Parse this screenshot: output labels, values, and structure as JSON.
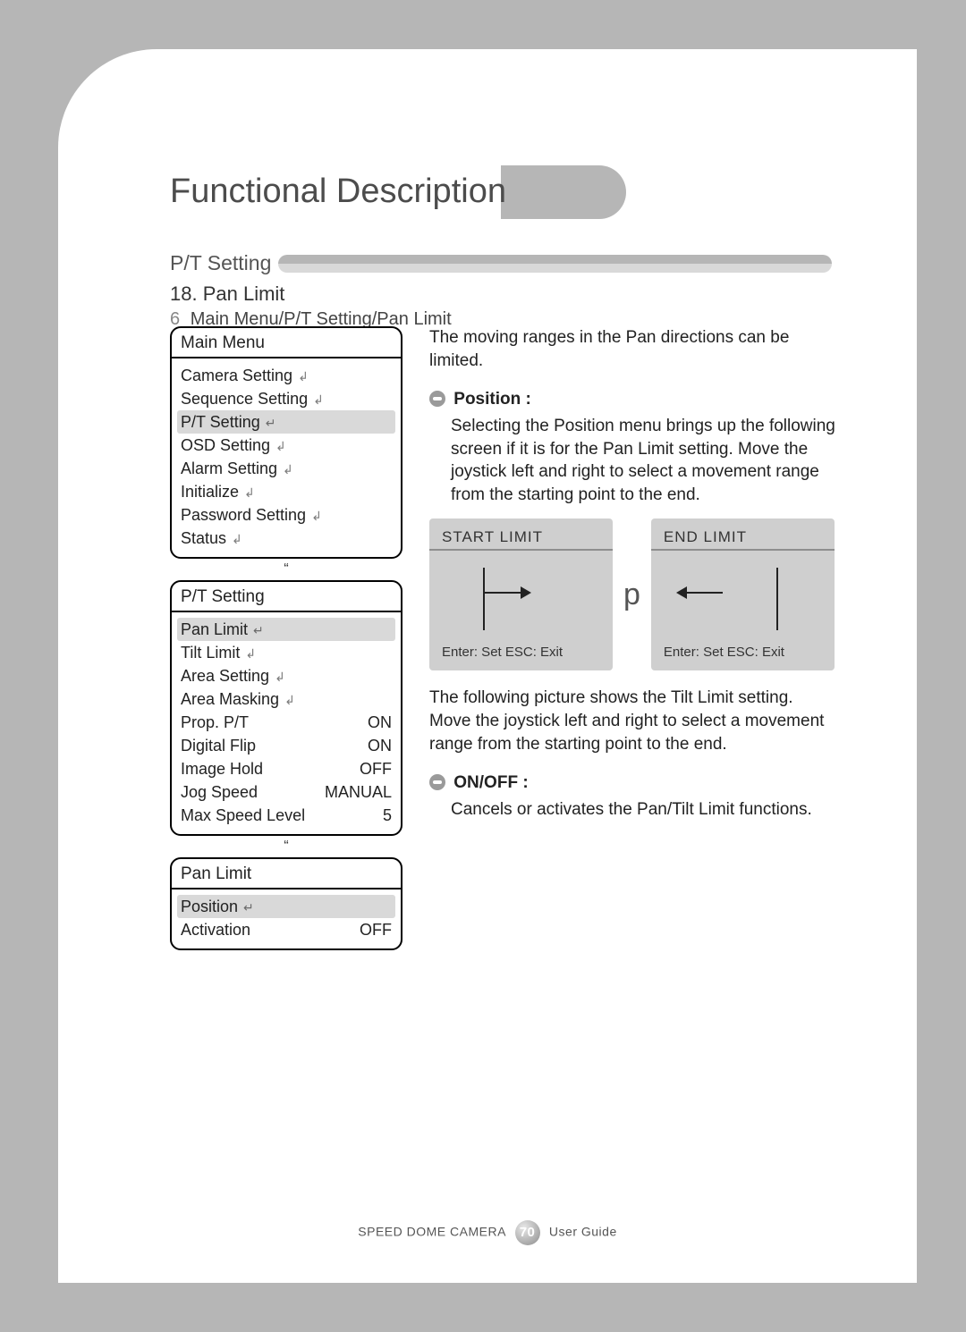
{
  "colors": {
    "page_bg": "#b6b6b6",
    "card_bg": "#ffffff",
    "accent": "#b6b6b6",
    "highlight": "#d9d9d9",
    "limit_bg": "#cfcfcf"
  },
  "title": "Functional Description",
  "section_label": "P/T Setting",
  "sub_number": "18. Pan Limit",
  "breadcrumb_prefix": "6",
  "breadcrumb": "Main Menu/P/T Setting/Pan Limit",
  "menus": {
    "main": {
      "title": "Main Menu",
      "items": [
        {
          "label": "Camera Setting",
          "icon": "↲"
        },
        {
          "label": "Sequence Setting",
          "icon": "↲"
        },
        {
          "label": "P/T Setting",
          "icon": "↵",
          "hi": true
        },
        {
          "label": "OSD Setting",
          "icon": "↲"
        },
        {
          "label": "Alarm Setting",
          "icon": "↲"
        },
        {
          "label": "Initialize",
          "icon": "↲"
        },
        {
          "label": "Password Setting",
          "icon": "↲"
        },
        {
          "label": "Status",
          "icon": "↲"
        }
      ]
    },
    "pt": {
      "title": "P/T Setting",
      "items": [
        {
          "label": "Pan Limit",
          "icon": "↵",
          "hi": true
        },
        {
          "label": "Tilt Limit",
          "icon": "↲"
        },
        {
          "label": "Area Setting",
          "icon": "↲"
        },
        {
          "label": "Area Masking",
          "icon": "↲"
        },
        {
          "label": "Prop. P/T",
          "value": "ON"
        },
        {
          "label": "Digital Flip",
          "value": "ON"
        },
        {
          "label": "Image Hold",
          "value": "OFF"
        },
        {
          "label": "Jog Speed",
          "value": "MANUAL"
        },
        {
          "label": "Max Speed Level",
          "value": "5"
        }
      ]
    },
    "pan": {
      "title": "Pan Limit",
      "items": [
        {
          "label": "Position",
          "icon": "↵",
          "hi": true
        },
        {
          "label": "Activation",
          "value": "OFF"
        }
      ]
    }
  },
  "right": {
    "intro": "The moving ranges in the Pan directions can be limited.",
    "position_title": "Position :",
    "position_body": "Selecting the Position menu brings up the following screen if it is for the Pan Limit setting. Move the joystick left and right to select a movement range from the starting point to the end.",
    "limits": {
      "start": {
        "title": "START LIMIT",
        "footer": "Enter: Set   ESC: Exit"
      },
      "between": "p",
      "end": {
        "title": "END LIMIT",
        "footer": "Enter: Set   ESC: Exit"
      }
    },
    "tilt_body": "The following picture shows the Tilt Limit setting.\nMove the joystick left and right to select a movement range from the starting point to the end.",
    "onoff_title": "ON/OFF :",
    "onoff_body": "Cancels or activates the Pan/Tilt Limit functions."
  },
  "footer": {
    "left": "SPEED DOME CAMERA",
    "page": "70",
    "right": "User Guide"
  }
}
